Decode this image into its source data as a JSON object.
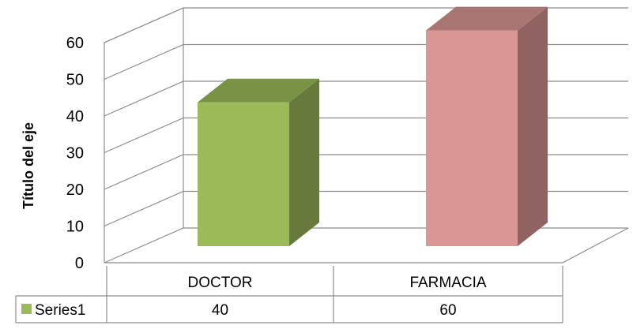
{
  "chart_data": {
    "type": "bar",
    "style": "3d-column",
    "categories": [
      "DOCTOR",
      "FARMACIA"
    ],
    "series": [
      {
        "name": "Series1",
        "values": [
          40,
          60
        ]
      }
    ],
    "bar_colors": [
      "#9bbb59",
      "#d99694"
    ],
    "ylabel": "Título del eje",
    "yticks": [
      "0",
      "10",
      "20",
      "30",
      "40",
      "50",
      "60"
    ],
    "ylim": [
      0,
      60
    ],
    "grid": true,
    "legend": "data-table"
  }
}
